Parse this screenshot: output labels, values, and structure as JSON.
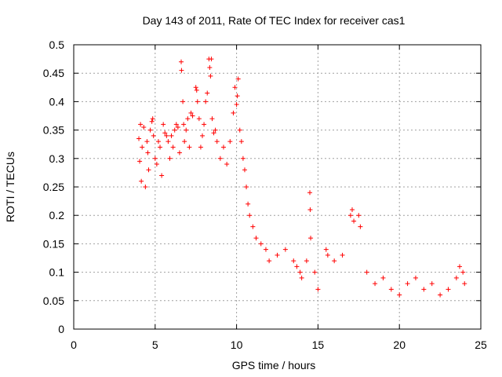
{
  "chart_data": {
    "type": "scatter",
    "title": "Day 143 of 2011, Rate Of TEC Index for receiver cas1",
    "xlabel": "GPS time / hours",
    "ylabel": "ROTI / TECUs",
    "xlim": [
      0,
      25
    ],
    "ylim": [
      0,
      0.5
    ],
    "x_ticks": [
      "0",
      "5",
      "10",
      "15",
      "20",
      "25"
    ],
    "y_ticks": [
      "0",
      "0.05",
      "0.1",
      "0.15",
      "0.2",
      "0.25",
      "0.3",
      "0.35",
      "0.4",
      "0.45",
      "0.5"
    ],
    "x_tick_values": [
      0,
      5,
      10,
      15,
      20,
      25
    ],
    "y_tick_values": [
      0,
      0.05,
      0.1,
      0.15,
      0.2,
      0.25,
      0.3,
      0.35,
      0.4,
      0.45,
      0.5
    ],
    "grid": true,
    "marker": "plus",
    "color": "#ff0000",
    "series": [
      {
        "points": [
          [
            4.0,
            0.335
          ],
          [
            4.05,
            0.295
          ],
          [
            4.1,
            0.36
          ],
          [
            4.15,
            0.26
          ],
          [
            4.2,
            0.32
          ],
          [
            4.3,
            0.355
          ],
          [
            4.4,
            0.25
          ],
          [
            4.5,
            0.33
          ],
          [
            4.55,
            0.31
          ],
          [
            4.6,
            0.28
          ],
          [
            4.7,
            0.35
          ],
          [
            4.8,
            0.365
          ],
          [
            4.85,
            0.37
          ],
          [
            4.9,
            0.34
          ],
          [
            5.0,
            0.3
          ],
          [
            5.1,
            0.29
          ],
          [
            5.2,
            0.33
          ],
          [
            5.3,
            0.32
          ],
          [
            5.4,
            0.27
          ],
          [
            5.5,
            0.36
          ],
          [
            5.6,
            0.345
          ],
          [
            5.7,
            0.34
          ],
          [
            5.8,
            0.33
          ],
          [
            5.9,
            0.3
          ],
          [
            6.0,
            0.34
          ],
          [
            6.1,
            0.32
          ],
          [
            6.2,
            0.35
          ],
          [
            6.3,
            0.36
          ],
          [
            6.4,
            0.355
          ],
          [
            6.5,
            0.31
          ],
          [
            6.6,
            0.47
          ],
          [
            6.62,
            0.455
          ],
          [
            6.7,
            0.4
          ],
          [
            6.75,
            0.36
          ],
          [
            6.8,
            0.33
          ],
          [
            6.9,
            0.35
          ],
          [
            7.0,
            0.37
          ],
          [
            7.1,
            0.32
          ],
          [
            7.2,
            0.38
          ],
          [
            7.3,
            0.375
          ],
          [
            7.5,
            0.425
          ],
          [
            7.55,
            0.42
          ],
          [
            7.6,
            0.4
          ],
          [
            7.7,
            0.37
          ],
          [
            7.8,
            0.32
          ],
          [
            7.9,
            0.34
          ],
          [
            8.0,
            0.36
          ],
          [
            8.1,
            0.4
          ],
          [
            8.2,
            0.415
          ],
          [
            8.3,
            0.475
          ],
          [
            8.35,
            0.46
          ],
          [
            8.4,
            0.445
          ],
          [
            8.45,
            0.475
          ],
          [
            8.5,
            0.37
          ],
          [
            8.6,
            0.345
          ],
          [
            8.7,
            0.35
          ],
          [
            8.8,
            0.33
          ],
          [
            9.0,
            0.3
          ],
          [
            9.2,
            0.32
          ],
          [
            9.4,
            0.29
          ],
          [
            9.6,
            0.33
          ],
          [
            9.8,
            0.38
          ],
          [
            9.9,
            0.425
          ],
          [
            10.0,
            0.395
          ],
          [
            10.05,
            0.41
          ],
          [
            10.1,
            0.44
          ],
          [
            10.2,
            0.35
          ],
          [
            10.3,
            0.33
          ],
          [
            10.4,
            0.3
          ],
          [
            10.5,
            0.28
          ],
          [
            10.6,
            0.25
          ],
          [
            10.7,
            0.22
          ],
          [
            10.8,
            0.2
          ],
          [
            11.0,
            0.18
          ],
          [
            11.2,
            0.16
          ],
          [
            11.5,
            0.15
          ],
          [
            11.8,
            0.14
          ],
          [
            12.0,
            0.12
          ],
          [
            12.5,
            0.13
          ],
          [
            13.0,
            0.14
          ],
          [
            13.5,
            0.12
          ],
          [
            13.7,
            0.11
          ],
          [
            13.9,
            0.1
          ],
          [
            14.0,
            0.09
          ],
          [
            14.3,
            0.12
          ],
          [
            14.5,
            0.24
          ],
          [
            14.52,
            0.21
          ],
          [
            14.55,
            0.16
          ],
          [
            14.8,
            0.1
          ],
          [
            15.0,
            0.07
          ],
          [
            15.5,
            0.14
          ],
          [
            15.6,
            0.13
          ],
          [
            16.0,
            0.12
          ],
          [
            16.5,
            0.13
          ],
          [
            17.0,
            0.2
          ],
          [
            17.1,
            0.21
          ],
          [
            17.2,
            0.19
          ],
          [
            17.5,
            0.2
          ],
          [
            17.6,
            0.18
          ],
          [
            18.0,
            0.1
          ],
          [
            18.5,
            0.08
          ],
          [
            19.0,
            0.09
          ],
          [
            19.5,
            0.07
          ],
          [
            20.0,
            0.06
          ],
          [
            20.5,
            0.08
          ],
          [
            21.0,
            0.09
          ],
          [
            21.5,
            0.07
          ],
          [
            22.0,
            0.08
          ],
          [
            22.5,
            0.06
          ],
          [
            23.0,
            0.07
          ],
          [
            23.5,
            0.09
          ],
          [
            23.7,
            0.11
          ],
          [
            23.9,
            0.1
          ],
          [
            24.0,
            0.08
          ]
        ]
      }
    ]
  }
}
